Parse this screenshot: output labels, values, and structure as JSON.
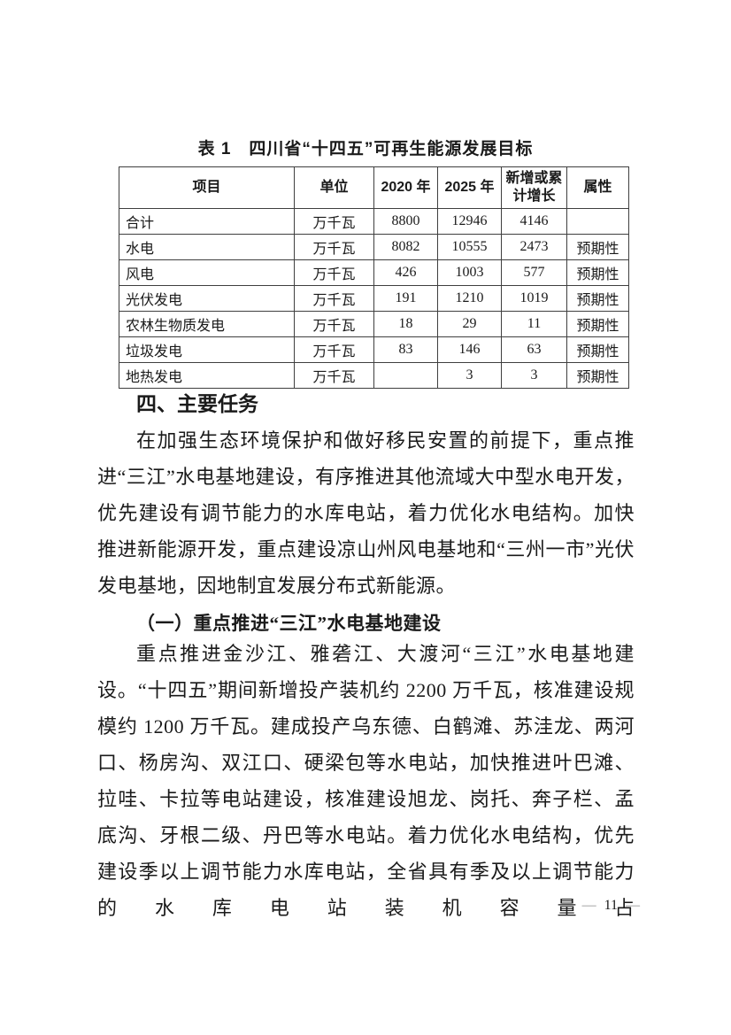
{
  "doc": {
    "table_title": "表 1　四川省“十四五”可再生能源发展目标",
    "table": {
      "headers": [
        "项目",
        "单位",
        "2020 年",
        "2025 年",
        "新增或累计增长",
        "属性"
      ],
      "rows": [
        [
          "合计",
          "万千瓦",
          "8800",
          "12946",
          "4146",
          ""
        ],
        [
          "水电",
          "万千瓦",
          "8082",
          "10555",
          "2473",
          "预期性"
        ],
        [
          "风电",
          "万千瓦",
          "426",
          "1003",
          "577",
          "预期性"
        ],
        [
          "光伏发电",
          "万千瓦",
          "191",
          "1210",
          "1019",
          "预期性"
        ],
        [
          "农林生物质发电",
          "万千瓦",
          "18",
          "29",
          "11",
          "预期性"
        ],
        [
          "垃圾发电",
          "万千瓦",
          "83",
          "146",
          "63",
          "预期性"
        ],
        [
          "地热发电",
          "万千瓦",
          "",
          "3",
          "3",
          "预期性"
        ]
      ]
    },
    "body": {
      "heading": "四、主要任务",
      "paragraph1": "在加强生态环境保护和做好移民安置的前提下，重点推进“三江”水电基地建设，有序推进其他流域大中型水电开发，优先建设有调节能力的水库电站，着力优化水电结构。加快推进新能源开发，重点建设凉山州风电基地和“三州一市”光伏发电基地，因地制宜发展分布式新能源。",
      "subheading": "（一）重点推进“三江”水电基地建设",
      "paragraph2": "重点推进金沙江、雅砻江、大渡河“三江”水电基地建设。“十四五”期间新增投产装机约 2200 万千瓦，核准建设规模约 1200 万千瓦。建成投产乌东德、白鹤滩、苏洼龙、两河口、杨房沟、双江口、硬梁包等水电站，加快推进叶巴滩、拉哇、卡拉等电站建设，核准建设旭龙、岗托、奔子栏、孟底沟、牙根二级、丹巴等水电站。着力优化水电结构，优先建设季以上调节能力水库电站，全省具有季及以上调节能力的水库电站装机容量占"
    },
    "footer": {
      "dash_left": "—",
      "page_number": "11",
      "dash_right": "—"
    }
  }
}
